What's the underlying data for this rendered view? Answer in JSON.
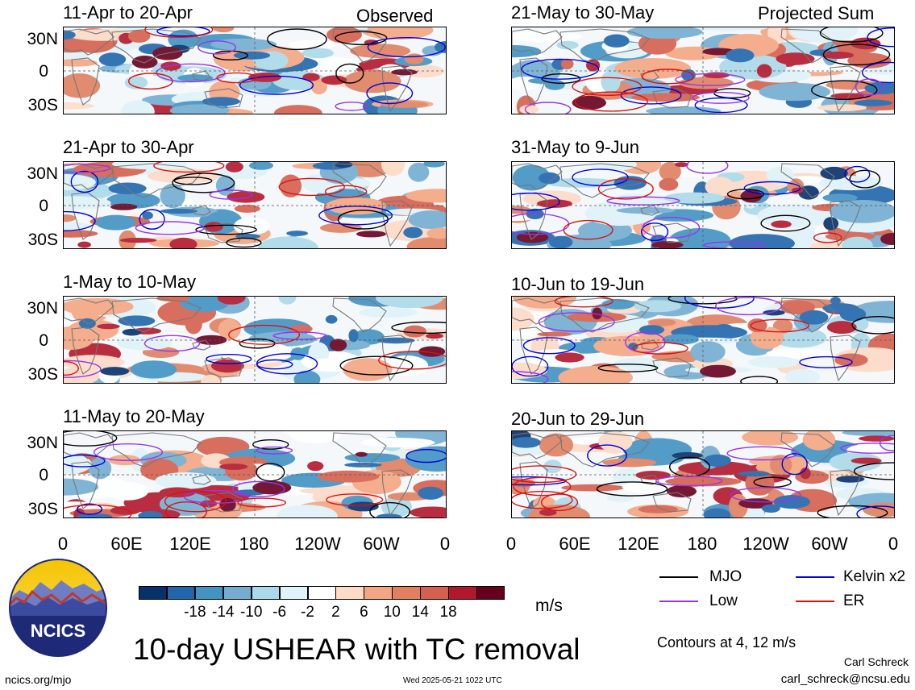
{
  "corner_labels": {
    "left": "Observed",
    "right": "Projected Sum"
  },
  "panels": {
    "left": [
      "11-Apr to 20-Apr",
      "21-Apr to 30-Apr",
      "1-May to 10-May",
      "11-May to 20-May"
    ],
    "right": [
      "21-May to 30-May",
      "31-May to 9-Jun",
      "10-Jun to 19-Jun",
      "20-Jun to 29-Jun"
    ]
  },
  "lat_labels": [
    "30N",
    "0",
    "30S"
  ],
  "lon_labels": [
    "0",
    "60E",
    "120E",
    "180",
    "120W",
    "60W",
    "0"
  ],
  "colorbar": {
    "colors": [
      "#08306b",
      "#2166ac",
      "#4393c3",
      "#74add1",
      "#abd9e9",
      "#e0f3f8",
      "#ffffff",
      "#fddbc7",
      "#f4a582",
      "#e08060",
      "#d6604d",
      "#b2182b",
      "#67001f"
    ],
    "ticks": [
      "-18",
      "-14",
      "-10",
      "-6",
      "-2",
      "2",
      "6",
      "10",
      "14",
      "18"
    ],
    "unit": "m/s"
  },
  "legend": {
    "items": [
      {
        "label": "MJO",
        "color": "#000000"
      },
      {
        "label": "Kelvin x2",
        "color": "#0000dd"
      },
      {
        "label": "Low",
        "color": "#9933ee"
      },
      {
        "label": "ER",
        "color": "#dd1111"
      }
    ],
    "contours_note": "Contours at 4, 12 m/s"
  },
  "logo": {
    "text": "NCICS"
  },
  "title": "10-day USHEAR with TC removal",
  "footer": {
    "site": "ncics.org/mjo",
    "timestamp": "Wed 2025-05-21 1022 UTC",
    "author": "Carl Schreck",
    "email": "carl_schreck@ncsu.edu"
  }
}
